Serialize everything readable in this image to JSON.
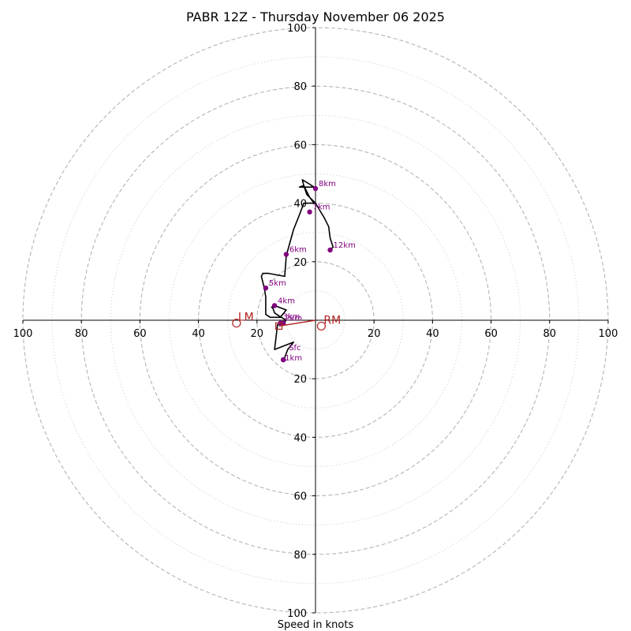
{
  "chart_data": {
    "type": "hodograph",
    "title": "PABR 12Z - Thursday November 06 2025",
    "xlabel": "Speed in knots",
    "ylabel": "",
    "xlim": [
      -100,
      100
    ],
    "ylim": [
      -100,
      100
    ],
    "grid": true,
    "ring_radii_dashed": [
      20,
      40,
      60,
      80,
      100
    ],
    "ring_radii_dotted": [
      10,
      30,
      50,
      70,
      90
    ],
    "tick_labels": {
      "left": [
        "100",
        "80",
        "60",
        "40",
        "20"
      ],
      "right": [
        "20",
        "40",
        "60",
        "80",
        "100"
      ],
      "top": [
        "100",
        "80",
        "60",
        "40",
        "20"
      ],
      "bottom": [
        "20",
        "40",
        "60",
        "80",
        "100"
      ]
    },
    "tick_values": {
      "left": [
        -100,
        -80,
        -60,
        -40,
        -20
      ],
      "right": [
        20,
        40,
        60,
        80,
        100
      ],
      "top": [
        100,
        80,
        60,
        40,
        20
      ],
      "bottom": [
        -20,
        -40,
        -60,
        -80,
        -100
      ]
    },
    "trace": {
      "color": "#000000",
      "points": [
        [
          -11,
          -14
        ],
        [
          -9.5,
          -10
        ],
        [
          -7.5,
          -7.5
        ],
        [
          -14,
          -10
        ],
        [
          -13.5,
          -6
        ],
        [
          -13,
          -1.5
        ],
        [
          -11.5,
          -1.5
        ],
        [
          -10,
          0
        ],
        [
          -12.5,
          1.5
        ],
        [
          -14,
          2.5
        ],
        [
          -14.5,
          4
        ],
        [
          -15,
          4.5
        ],
        [
          -14,
          5
        ],
        [
          -10,
          3.5
        ],
        [
          -12,
          1
        ],
        [
          -15.5,
          1
        ],
        [
          -17,
          2
        ],
        [
          -17,
          8
        ],
        [
          -17.5,
          11
        ],
        [
          -18.5,
          15
        ],
        [
          -18,
          16
        ],
        [
          -16,
          16
        ],
        [
          -10.5,
          15
        ],
        [
          -10,
          22
        ],
        [
          -7.5,
          31
        ],
        [
          -5.5,
          36
        ],
        [
          -4,
          40
        ],
        [
          -0.5,
          40
        ],
        [
          -2,
          42
        ],
        [
          -4,
          46
        ],
        [
          -4.5,
          48
        ],
        [
          -2,
          46.5
        ],
        [
          -0.5,
          45.5
        ],
        [
          -3,
          45.5
        ],
        [
          -5.5,
          45.5
        ],
        [
          -4,
          46
        ],
        [
          -3,
          43
        ],
        [
          0,
          40
        ],
        [
          3,
          35
        ],
        [
          4.5,
          32
        ],
        [
          5,
          28
        ],
        [
          6,
          25
        ],
        [
          5,
          24
        ]
      ]
    },
    "height_markers": [
      {
        "label": "Sfc",
        "u": -11,
        "v": -13.5
      },
      {
        "label": "1km",
        "u": -11,
        "v": -13.5
      },
      {
        "label": "2km",
        "u": -11,
        "v": -1
      },
      {
        "label": "3km",
        "u": -12,
        "v": -1
      },
      {
        "label": "4km",
        "u": -14,
        "v": 5
      },
      {
        "label": "5km",
        "u": -17,
        "v": 11
      },
      {
        "label": "6km",
        "u": -10,
        "v": 22.5
      },
      {
        "label": "7km",
        "u": -2,
        "v": 37
      },
      {
        "label": "8km",
        "u": 0,
        "v": 45
      },
      {
        "label": "12km",
        "u": 5,
        "v": 24
      }
    ],
    "marker_color": "#800080",
    "storm_motion": {
      "color": "#b22222",
      "rm": {
        "label": "RM",
        "u": 2,
        "v": -2
      },
      "lm": {
        "label": "LM",
        "u": -27,
        "v": -1
      },
      "mean": {
        "u": -12.5,
        "v": -2
      }
    }
  }
}
